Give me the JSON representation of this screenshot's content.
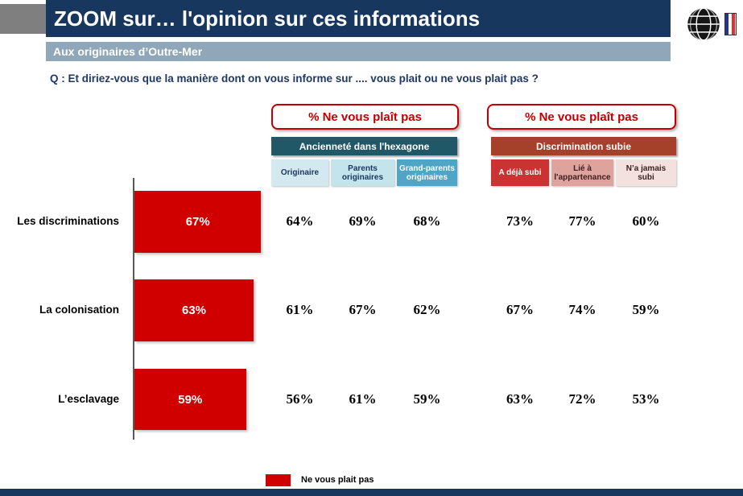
{
  "slide": {
    "title": "ZOOM sur… l'opinion sur ces informations",
    "subtitle": "Aux originaires d’Outre-Mer",
    "question": "Q : Et diriez-vous que la manière dont on vous informe sur .... vous plait ou ne vous plait pas ?"
  },
  "groups": [
    {
      "badge": "% Ne vous plaît pas",
      "label": "Ancienneté dans l'hexagone",
      "columns": [
        "Originaire",
        "Parents originaires",
        "Grand-parents originaires"
      ]
    },
    {
      "badge": "% Ne vous plaît pas",
      "label": "Discrimination subie",
      "columns": [
        "A déjà subi",
        "Lié à l'appartenance",
        "N’a jamais subi"
      ]
    }
  ],
  "rows": [
    {
      "label": "Les discriminations",
      "bar": 67,
      "bar_label": "67%",
      "cells": [
        "64%",
        "69%",
        "68%",
        "73%",
        "77%",
        "60%"
      ]
    },
    {
      "label": "La colonisation",
      "bar": 63,
      "bar_label": "63%",
      "cells": [
        "61%",
        "67%",
        "62%",
        "67%",
        "74%",
        "59%"
      ]
    },
    {
      "label": "L’esclavage",
      "bar": 59,
      "bar_label": "59%",
      "cells": [
        "56%",
        "61%",
        "59%",
        "63%",
        "72%",
        "53%"
      ]
    }
  ],
  "legend": {
    "label": "Ne vous plait pas",
    "color": "#d00000"
  },
  "colors": {
    "bar_red": "#d00000",
    "title_bar": "#17375e",
    "subtitle_bar": "#8fa7b8",
    "group_anciennete": "#215868",
    "group_discrimination": "#a5402a",
    "badge_border": "#c00000"
  },
  "chart_data": {
    "type": "bar",
    "title": "% Ne vous plaît pas",
    "categories": [
      "Les discriminations",
      "La colonisation",
      "L'esclavage"
    ],
    "values": [
      67,
      63,
      59
    ],
    "xlabel": "",
    "ylabel": "",
    "xlim": [
      0,
      100
    ],
    "legend_entries": [
      "Ne vous plait pas"
    ],
    "legend_position": "bottom",
    "grid": false,
    "groups": [
      {
        "label": "Ancienneté dans l'hexagone",
        "series": [
          {
            "name": "Originaire",
            "values": [
              64,
              61,
              56
            ]
          },
          {
            "name": "Parents originaires",
            "values": [
              69,
              67,
              61
            ]
          },
          {
            "name": "Grand-parents originaires",
            "values": [
              68,
              62,
              59
            ]
          }
        ]
      },
      {
        "label": "Discrimination subie",
        "series": [
          {
            "name": "A déjà subi",
            "values": [
              73,
              67,
              63
            ]
          },
          {
            "name": "Lié à l'appartenance",
            "values": [
              77,
              74,
              72
            ]
          },
          {
            "name": "N'a jamais subi",
            "values": [
              60,
              59,
              53
            ]
          }
        ]
      }
    ]
  }
}
